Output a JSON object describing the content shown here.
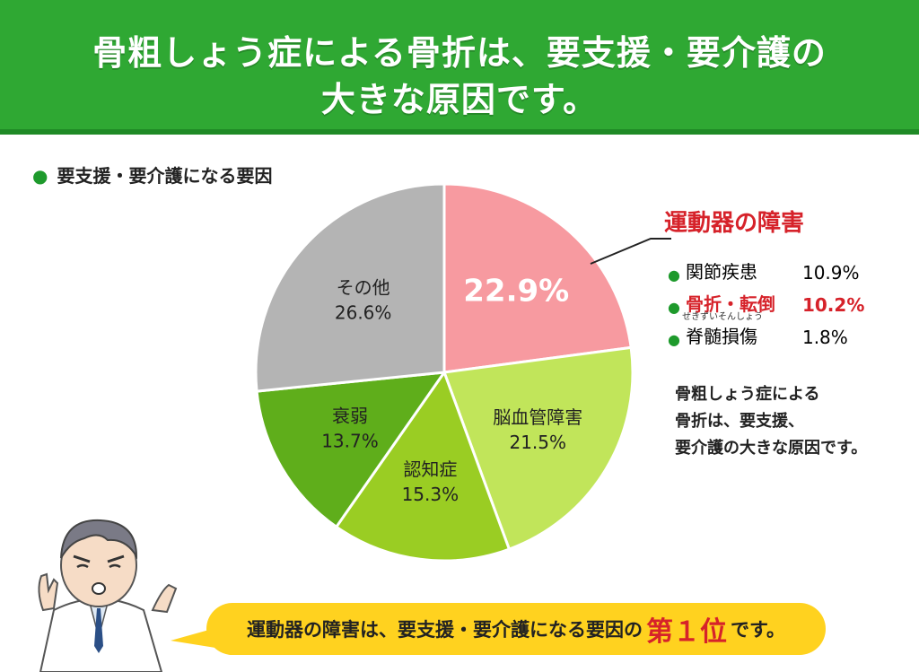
{
  "header": {
    "title_line1": "骨粗しょう症による骨折は、要支援・要介護の",
    "title_line2": "大きな原因です。"
  },
  "subtitle": "要支援・要介護になる要因",
  "chart_data": {
    "type": "pie",
    "title": "",
    "slices": [
      {
        "label": "",
        "value_text": "22.9%",
        "value": 22.9,
        "color": "#f79aa0"
      },
      {
        "label": "脳血管障害",
        "value_text": "21.5%",
        "value": 21.5,
        "color": "#c1e55a"
      },
      {
        "label": "認知症",
        "value_text": "15.3%",
        "value": 15.3,
        "color": "#9acd23"
      },
      {
        "label": "衰弱",
        "value_text": "13.7%",
        "value": 13.7,
        "color": "#5fae1b"
      },
      {
        "label": "その他",
        "value_text": "26.6%",
        "value": 26.6,
        "color": "#b4b4b4"
      }
    ]
  },
  "callout": {
    "title": "運動器の障害",
    "items": [
      {
        "name": "関節疾患",
        "value": "10.9%",
        "highlight": false
      },
      {
        "name": "骨折・転倒",
        "value": "10.2%",
        "highlight": true
      },
      {
        "name": "脊髄損傷",
        "value": "1.8%",
        "highlight": false,
        "ruby": "せきずいそんしょう"
      }
    ]
  },
  "note": {
    "line1": "骨粗しょう症による",
    "line2": "骨折は、要支援、",
    "line3": "要介護の大きな原因です。"
  },
  "bottom": {
    "text_before": "運動器の障害は、要支援・要介護になる要因の",
    "highlight": "第１位",
    "text_after": "です。"
  },
  "colors": {
    "banner": "#2fa833",
    "accent_red": "#d6222a",
    "bubble": "#ffd21f"
  }
}
